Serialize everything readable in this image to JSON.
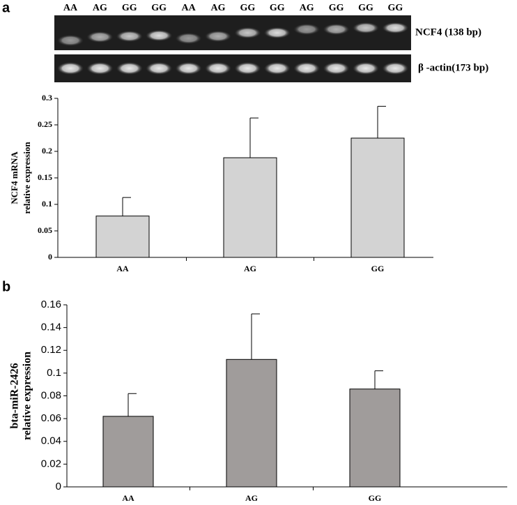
{
  "panel_labels": [
    "a",
    "b"
  ],
  "gel": {
    "lanes": [
      "AA",
      "AG",
      "GG",
      "GG",
      "AA",
      "AG",
      "GG",
      "GG",
      "AG",
      "GG",
      "GG",
      "GG"
    ],
    "bands": [
      "NCF4 (138 bp)",
      "β -actin(173 bp)"
    ]
  },
  "chart_data": [
    {
      "type": "bar",
      "categories": [
        "AA",
        "AG",
        "GG"
      ],
      "values": [
        0.078,
        0.188,
        0.225
      ],
      "errors": [
        0.035,
        0.075,
        0.06
      ],
      "color": "#d3d3d3",
      "ylabel": [
        "NCF4 mRNA",
        "relative expression"
      ],
      "ylim": [
        0,
        0.3
      ],
      "yticks": [
        0,
        0.05,
        0.1,
        0.15,
        0.2,
        0.25,
        0.3
      ]
    },
    {
      "type": "bar",
      "categories": [
        "AA",
        "AG",
        "GG"
      ],
      "values": [
        0.062,
        0.112,
        0.086
      ],
      "errors": [
        0.02,
        0.04,
        0.016
      ],
      "color": "#a09c9b",
      "ylabel": [
        "bta-miR-2426",
        "relative expression"
      ],
      "ylim": [
        0,
        0.16
      ],
      "yticks": [
        0,
        0.02,
        0.04,
        0.06,
        0.08,
        0.1,
        0.12,
        0.14,
        0.16
      ]
    }
  ]
}
